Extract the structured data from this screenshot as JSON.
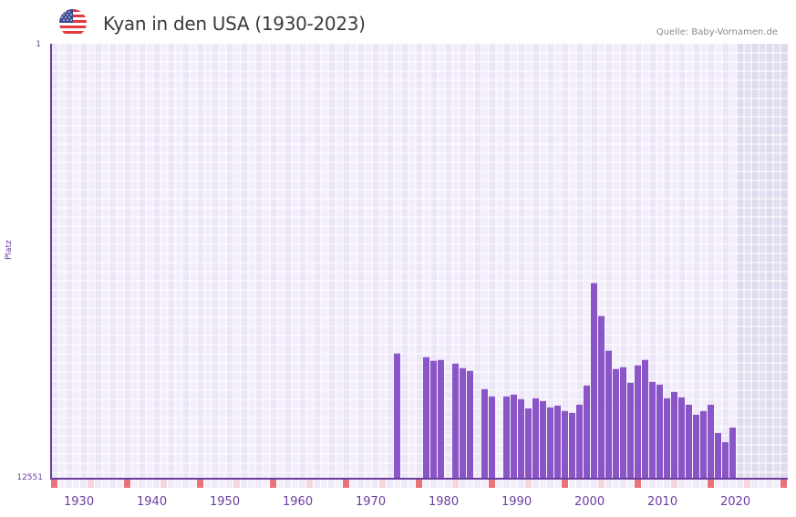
{
  "header": {
    "title": "Kyan in den USA (1930-2023)",
    "source": "Quelle: Baby-Vornamen.de",
    "flag_icon": "us-flag-icon"
  },
  "colors": {
    "bar": "#8a55c6",
    "axis": "#6a3ea1",
    "grid_a": "#ece6f7",
    "grid_b": "#f2eefb",
    "future_shade": "#e3dfee",
    "marker_decade": "#e8737a",
    "marker_mid": "#f5d6df",
    "marker_base": "#efeaf8"
  },
  "chart_data": {
    "type": "bar",
    "title": "Kyan in den USA (1930-2023)",
    "xlabel": "",
    "ylabel": "Platz",
    "ylim": [
      12551,
      1
    ],
    "y_inverted": true,
    "y_ticks": [
      "1",
      "12551"
    ],
    "x_range": [
      1928,
      2028
    ],
    "x_ticks": [
      1930,
      1940,
      1950,
      1960,
      1970,
      1980,
      1990,
      2000,
      2010,
      2020
    ],
    "shaded_from_year": 2022,
    "grid": true,
    "categories": [
      1975,
      1979,
      1980,
      1981,
      1983,
      1984,
      1985,
      1987,
      1988,
      1990,
      1991,
      1992,
      1993,
      1994,
      1995,
      1996,
      1997,
      1998,
      1999,
      2000,
      2001,
      2002,
      2003,
      2004,
      2005,
      2006,
      2007,
      2008,
      2009,
      2010,
      2011,
      2012,
      2013,
      2014,
      2015,
      2016,
      2017,
      2018,
      2019,
      2020,
      2021
    ],
    "values": [
      8939,
      9044,
      9150,
      9124,
      9229,
      9361,
      9440,
      9967,
      10178,
      10178,
      10125,
      10257,
      10521,
      10231,
      10310,
      10494,
      10442,
      10600,
      10653,
      10415,
      9862,
      6909,
      7858,
      8860,
      9387,
      9335,
      9783,
      9282,
      9124,
      9757,
      9836,
      10231,
      10047,
      10205,
      10416,
      10706,
      10600,
      10416,
      11233,
      11497,
      11075
    ]
  }
}
